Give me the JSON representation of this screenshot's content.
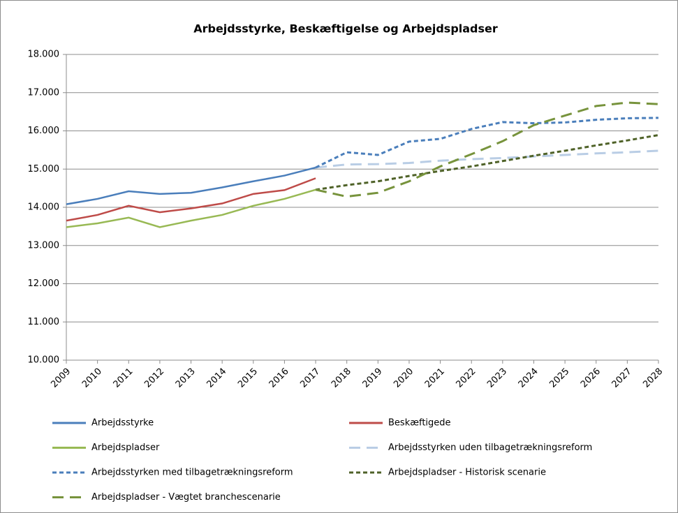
{
  "chart_data": {
    "type": "line",
    "title": "Arbejdsstyrke, Beskæftigelse og Arbejdspladser",
    "categories": [
      "2009",
      "2010",
      "2011",
      "2012",
      "2013",
      "2014",
      "2015",
      "2016",
      "2017",
      "2018",
      "2019",
      "2020",
      "2021",
      "2022",
      "2023",
      "2024",
      "2025",
      "2026",
      "2027",
      "2028"
    ],
    "ylim": [
      10000,
      18000
    ],
    "yticks": [
      {
        "value": 10000,
        "label": "10.000"
      },
      {
        "value": 11000,
        "label": "11.000"
      },
      {
        "value": 12000,
        "label": "12.000"
      },
      {
        "value": 13000,
        "label": "13.000"
      },
      {
        "value": 14000,
        "label": "14.000"
      },
      {
        "value": 15000,
        "label": "15.000"
      },
      {
        "value": 16000,
        "label": "16.000"
      },
      {
        "value": 17000,
        "label": "17.000"
      },
      {
        "value": 18000,
        "label": "18.000"
      }
    ],
    "grid": true,
    "legend": "bottom",
    "series": [
      {
        "name": "Arbejdsstyrke",
        "color": "#4a7ebb",
        "style": "solid",
        "values": [
          14080,
          14220,
          14420,
          14350,
          14380,
          14520,
          14680,
          14830,
          15040,
          null,
          null,
          null,
          null,
          null,
          null,
          null,
          null,
          null,
          null,
          null
        ]
      },
      {
        "name": "Beskæftigede",
        "color": "#be4b48",
        "style": "solid",
        "values": [
          13650,
          13800,
          14040,
          13870,
          13970,
          14100,
          14350,
          14450,
          14760,
          null,
          null,
          null,
          null,
          null,
          null,
          null,
          null,
          null,
          null,
          null
        ]
      },
      {
        "name": "Arbejdspladser",
        "color": "#98b954",
        "style": "solid",
        "values": [
          13480,
          13580,
          13730,
          13480,
          13650,
          13800,
          14040,
          14220,
          14460,
          null,
          null,
          null,
          null,
          null,
          null,
          null,
          null,
          null,
          null,
          null
        ]
      },
      {
        "name": "Arbejdsstyrken uden tilbagetrækningsreform",
        "color": "#b9cde5",
        "style": "long-dash",
        "values": [
          null,
          null,
          null,
          null,
          null,
          null,
          null,
          null,
          15040,
          15120,
          15130,
          15160,
          15220,
          15260,
          15290,
          15330,
          15370,
          15410,
          15440,
          15480
        ]
      },
      {
        "name": "Arbejdsstyrken med tilbagetrækningsreform",
        "color": "#4a7ebb",
        "style": "short-dash",
        "values": [
          null,
          null,
          null,
          null,
          null,
          null,
          null,
          null,
          15040,
          15440,
          15370,
          15720,
          15790,
          16050,
          16230,
          16200,
          16220,
          16290,
          16330,
          16340
        ]
      },
      {
        "name": "Arbejdspladser - Historisk scenarie",
        "color": "#4f6228",
        "style": "short-dash",
        "values": [
          null,
          null,
          null,
          null,
          null,
          null,
          null,
          null,
          14460,
          14580,
          14680,
          14820,
          14950,
          15070,
          15210,
          15350,
          15480,
          15620,
          15750,
          15890
        ]
      },
      {
        "name": "Arbejdspladser - Vægtet branchescenarie",
        "color": "#77933c",
        "style": "long-dash",
        "values": [
          null,
          null,
          null,
          null,
          null,
          null,
          null,
          null,
          14460,
          14280,
          14380,
          14680,
          15070,
          15390,
          15730,
          16150,
          16400,
          16650,
          16740,
          16700
        ]
      }
    ]
  }
}
